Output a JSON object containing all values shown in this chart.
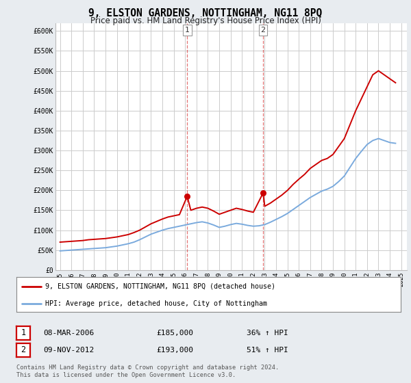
{
  "title": "9, ELSTON GARDENS, NOTTINGHAM, NG11 8PQ",
  "subtitle": "Price paid vs. HM Land Registry's House Price Index (HPI)",
  "ylim": [
    0,
    620000
  ],
  "yticks": [
    0,
    50000,
    100000,
    150000,
    200000,
    250000,
    300000,
    350000,
    400000,
    450000,
    500000,
    550000,
    600000
  ],
  "xlim_start": 1994.6,
  "xlim_end": 2025.5,
  "background_color": "#e8ecf0",
  "plot_bg_color": "#ffffff",
  "grid_color": "#cccccc",
  "red_line_color": "#cc0000",
  "blue_line_color": "#7aaadd",
  "sale1_x": 2006.18,
  "sale1_y": 185000,
  "sale2_x": 2012.85,
  "sale2_y": 193000,
  "legend_label_red": "9, ELSTON GARDENS, NOTTINGHAM, NG11 8PQ (detached house)",
  "legend_label_blue": "HPI: Average price, detached house, City of Nottingham",
  "table_row1": [
    "1",
    "08-MAR-2006",
    "£185,000",
    "36% ↑ HPI"
  ],
  "table_row2": [
    "2",
    "09-NOV-2012",
    "£193,000",
    "51% ↑ HPI"
  ],
  "footer": "Contains HM Land Registry data © Crown copyright and database right 2024.\nThis data is licensed under the Open Government Licence v3.0.",
  "red_hpi_data": [
    [
      1995.0,
      70000
    ],
    [
      1995.5,
      71000
    ],
    [
      1996.0,
      72000
    ],
    [
      1996.5,
      73000
    ],
    [
      1997.0,
      74000
    ],
    [
      1997.5,
      76000
    ],
    [
      1998.0,
      77000
    ],
    [
      1998.5,
      78000
    ],
    [
      1999.0,
      79000
    ],
    [
      1999.5,
      81000
    ],
    [
      2000.0,
      83000
    ],
    [
      2000.5,
      86000
    ],
    [
      2001.0,
      89000
    ],
    [
      2001.5,
      94000
    ],
    [
      2002.0,
      100000
    ],
    [
      2002.5,
      108000
    ],
    [
      2003.0,
      116000
    ],
    [
      2003.5,
      122000
    ],
    [
      2004.0,
      128000
    ],
    [
      2004.5,
      133000
    ],
    [
      2005.0,
      136000
    ],
    [
      2005.5,
      139000
    ],
    [
      2006.18,
      185000
    ],
    [
      2006.5,
      150000
    ],
    [
      2007.0,
      155000
    ],
    [
      2007.5,
      158000
    ],
    [
      2008.0,
      155000
    ],
    [
      2008.5,
      148000
    ],
    [
      2009.0,
      140000
    ],
    [
      2009.5,
      145000
    ],
    [
      2010.0,
      150000
    ],
    [
      2010.5,
      155000
    ],
    [
      2011.0,
      152000
    ],
    [
      2011.5,
      148000
    ],
    [
      2012.0,
      145000
    ],
    [
      2012.85,
      193000
    ],
    [
      2013.0,
      160000
    ],
    [
      2013.5,
      168000
    ],
    [
      2014.0,
      178000
    ],
    [
      2014.5,
      188000
    ],
    [
      2015.0,
      200000
    ],
    [
      2015.5,
      215000
    ],
    [
      2016.0,
      228000
    ],
    [
      2016.5,
      240000
    ],
    [
      2017.0,
      255000
    ],
    [
      2017.5,
      265000
    ],
    [
      2018.0,
      275000
    ],
    [
      2018.5,
      280000
    ],
    [
      2019.0,
      290000
    ],
    [
      2019.5,
      310000
    ],
    [
      2020.0,
      330000
    ],
    [
      2020.5,
      365000
    ],
    [
      2021.0,
      400000
    ],
    [
      2021.5,
      430000
    ],
    [
      2022.0,
      460000
    ],
    [
      2022.5,
      490000
    ],
    [
      2023.0,
      500000
    ],
    [
      2023.5,
      490000
    ],
    [
      2024.0,
      480000
    ],
    [
      2024.5,
      470000
    ]
  ],
  "blue_hpi_data": [
    [
      1995.0,
      48000
    ],
    [
      1995.5,
      49000
    ],
    [
      1996.0,
      50000
    ],
    [
      1996.5,
      51000
    ],
    [
      1997.0,
      52000
    ],
    [
      1997.5,
      53000
    ],
    [
      1998.0,
      54000
    ],
    [
      1998.5,
      55000
    ],
    [
      1999.0,
      56000
    ],
    [
      1999.5,
      58000
    ],
    [
      2000.0,
      60000
    ],
    [
      2000.5,
      63000
    ],
    [
      2001.0,
      66000
    ],
    [
      2001.5,
      70000
    ],
    [
      2002.0,
      76000
    ],
    [
      2002.5,
      83000
    ],
    [
      2003.0,
      90000
    ],
    [
      2003.5,
      95000
    ],
    [
      2004.0,
      100000
    ],
    [
      2004.5,
      104000
    ],
    [
      2005.0,
      107000
    ],
    [
      2005.5,
      110000
    ],
    [
      2006.0,
      113000
    ],
    [
      2006.5,
      116000
    ],
    [
      2007.0,
      119000
    ],
    [
      2007.5,
      121000
    ],
    [
      2008.0,
      118000
    ],
    [
      2008.5,
      113000
    ],
    [
      2009.0,
      107000
    ],
    [
      2009.5,
      110000
    ],
    [
      2010.0,
      114000
    ],
    [
      2010.5,
      117000
    ],
    [
      2011.0,
      115000
    ],
    [
      2011.5,
      112000
    ],
    [
      2012.0,
      110000
    ],
    [
      2012.5,
      111000
    ],
    [
      2013.0,
      114000
    ],
    [
      2013.5,
      120000
    ],
    [
      2014.0,
      127000
    ],
    [
      2014.5,
      134000
    ],
    [
      2015.0,
      142000
    ],
    [
      2015.5,
      152000
    ],
    [
      2016.0,
      162000
    ],
    [
      2016.5,
      172000
    ],
    [
      2017.0,
      182000
    ],
    [
      2017.5,
      190000
    ],
    [
      2018.0,
      198000
    ],
    [
      2018.5,
      203000
    ],
    [
      2019.0,
      210000
    ],
    [
      2019.5,
      222000
    ],
    [
      2020.0,
      236000
    ],
    [
      2020.5,
      258000
    ],
    [
      2021.0,
      280000
    ],
    [
      2021.5,
      298000
    ],
    [
      2022.0,
      315000
    ],
    [
      2022.5,
      325000
    ],
    [
      2023.0,
      330000
    ],
    [
      2023.5,
      325000
    ],
    [
      2024.0,
      320000
    ],
    [
      2024.5,
      318000
    ]
  ]
}
